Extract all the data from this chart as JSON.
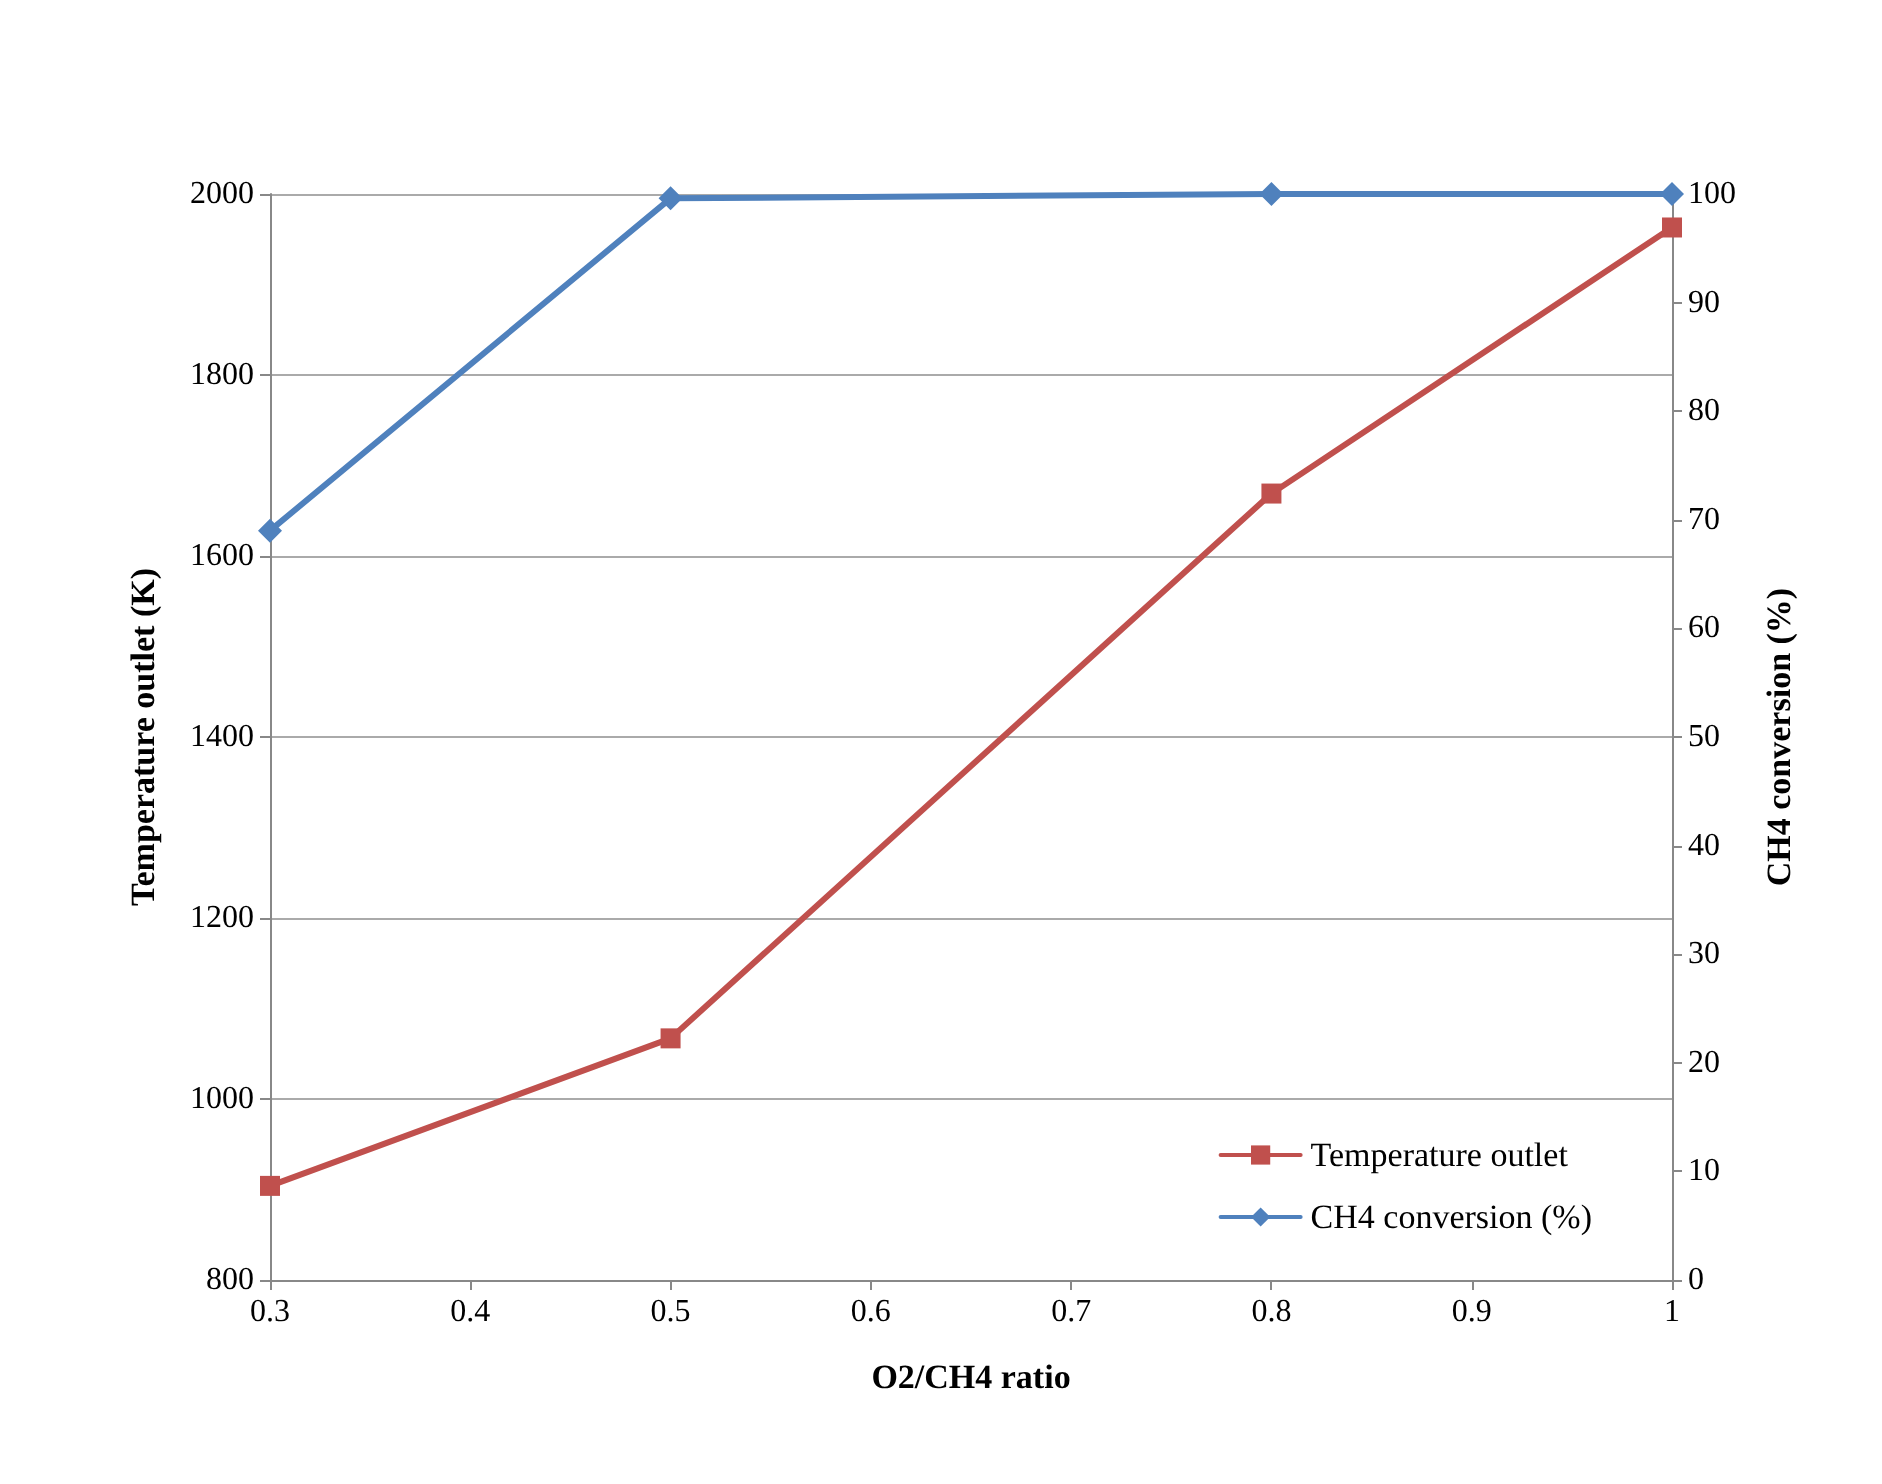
{
  "chart_data": {
    "type": "line",
    "xlabel": "O2/CH4 ratio",
    "ylabel": "Temperature outlet (K)",
    "y2label": "CH4 conversion (%)",
    "x": [
      0.3,
      0.5,
      0.8,
      1
    ],
    "series": [
      {
        "name": "Temperature outlet",
        "color": "#c0504d",
        "values": [
          904,
          1067,
          1669,
          1963
        ],
        "marker": "square"
      },
      {
        "name": "CH4 conversion (%)",
        "color": "#4f81bd",
        "values": [
          69,
          99.6,
          100,
          100
        ],
        "marker": "diamond",
        "axis": "y2"
      }
    ],
    "xlim": [
      0.3,
      1
    ],
    "xticks": [
      0.3,
      0.4,
      0.5,
      0.6,
      0.7,
      0.8,
      0.9,
      1
    ],
    "ylim": [
      800,
      2000
    ],
    "yticks": [
      800,
      1000,
      1200,
      1400,
      1600,
      1800,
      2000
    ],
    "y2lim": [
      0,
      100
    ],
    "y2ticks": [
      0,
      10,
      20,
      30,
      40,
      50,
      60,
      70,
      80,
      90,
      100
    ],
    "grid": "y",
    "legend": "bottom right",
    "line_style": "solid"
  }
}
